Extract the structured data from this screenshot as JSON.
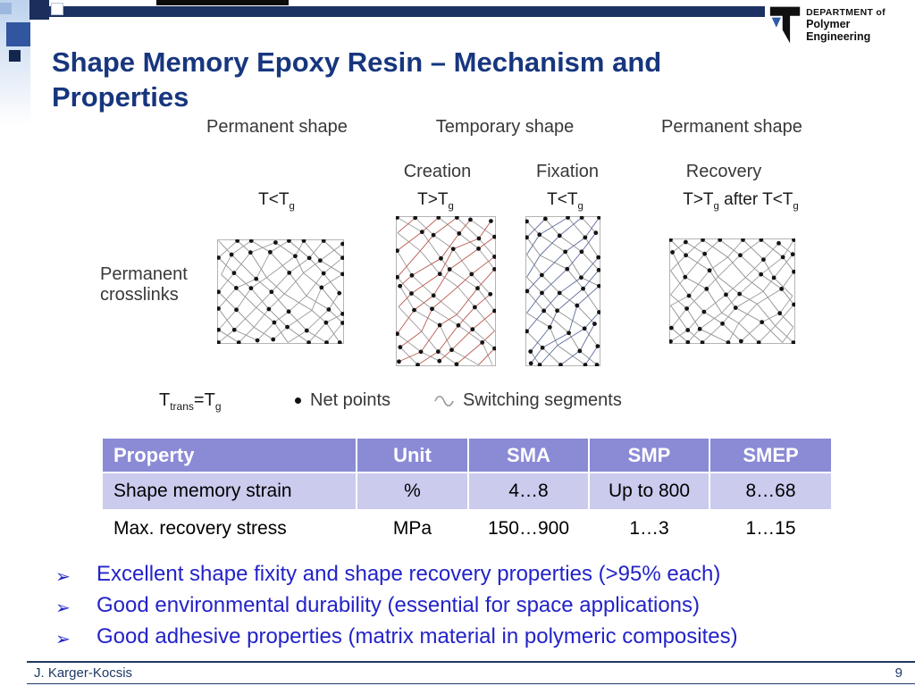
{
  "theme": {
    "title_color": "#17367e",
    "bar_color": "#1d3263",
    "table_header_bg": "#8a8ad5",
    "table_header_text": "#ffffff",
    "table_row_alt_bg": "#cbcbee",
    "bullet_color": "#2323c8",
    "footer_color": "#203864"
  },
  "header": {
    "logo_line1": "DEPARTMENT of",
    "logo_line2": "Polymer Engineering",
    "title": "Shape Memory Epoxy Resin – Mechanism and Properties"
  },
  "diagram": {
    "stage_labels": [
      "Permanent shape",
      "Temporary shape",
      "Permanent shape"
    ],
    "phase_labels": [
      "Creation",
      "Fixation",
      "Recovery"
    ],
    "temp_labels": [
      "T<T{g}",
      "T>T{g}",
      "T<T{g}",
      "T>T{g} after T<T{g}"
    ],
    "left_label_line1": "Permanent",
    "left_label_line2": "crosslinks",
    "trans_label": "T{trans}=T{g}",
    "legend": {
      "net_points": "Net points",
      "switching_segments": "Switching segments"
    },
    "meshes": [
      {
        "id": "permanent-initial",
        "seed": 11,
        "cols": 7,
        "rows": 6,
        "line_color": "#8f8f8f",
        "cross_color": "#9c9c9c",
        "dot_color": "#141414"
      },
      {
        "id": "temporary-creation",
        "seed": 23,
        "cols": 5,
        "rows": 8,
        "line_color": "#9c9c9c",
        "cross_color": "#b95a4e",
        "dot_color": "#141414"
      },
      {
        "id": "temporary-fixation",
        "seed": 37,
        "cols": 4,
        "rows": 8,
        "line_color": "#8f8f8f",
        "cross_color": "#5c6b9c",
        "dot_color": "#141414"
      },
      {
        "id": "permanent-recovered",
        "seed": 49,
        "cols": 7,
        "rows": 6,
        "line_color": "#8f8f8f",
        "cross_color": "#9c9c9c",
        "dot_color": "#141414"
      }
    ]
  },
  "table": {
    "headers": [
      "Property",
      "Unit",
      "SMA",
      "SMP",
      "SMEP"
    ],
    "rows": [
      [
        "Shape memory strain",
        "%",
        "4…8",
        "Up to 800",
        "8…68"
      ],
      [
        "Max. recovery stress",
        "MPa",
        "150…900",
        "1…3",
        "1…15"
      ]
    ]
  },
  "bullets": {
    "marker": "➢",
    "items": [
      "Excellent shape fixity and shape recovery properties (>95% each)",
      "Good environmental durability (essential for space applications)",
      "Good adhesive properties (matrix material in polymeric composites)"
    ]
  },
  "footer": {
    "author": "J. Karger-Kocsis",
    "page_number": "9"
  }
}
